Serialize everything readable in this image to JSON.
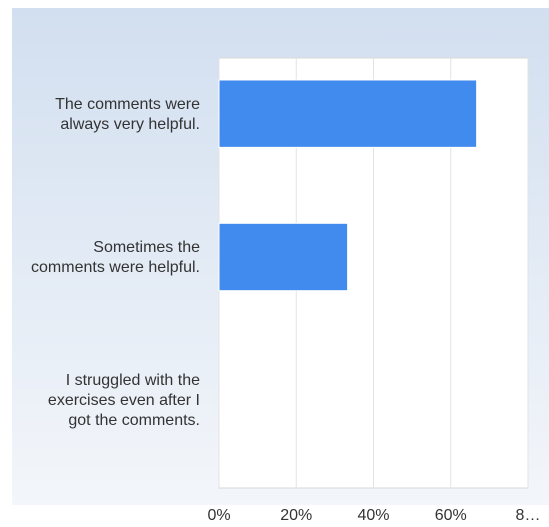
{
  "chart_data": {
    "type": "bar",
    "orientation": "horizontal",
    "categories": [
      "The comments were always very helpful.",
      "Sometimes the comments were helpful.",
      "I struggled with the exercises even after I got the comments."
    ],
    "values": [
      66.7,
      33.3,
      0
    ],
    "x_ticks": [
      "0%",
      "20%",
      "40%",
      "60%",
      "8…"
    ],
    "xlim": [
      0,
      80
    ],
    "grid": true,
    "legend": "none",
    "title": "",
    "xlabel": "",
    "ylabel": ""
  },
  "colors": {
    "bar": "#418bee",
    "background_top": "#d2dff0",
    "background_bottom": "#f3f6fa",
    "plot_area": "#ffffff",
    "grid": "#e3e3e3",
    "text": "#333333"
  }
}
